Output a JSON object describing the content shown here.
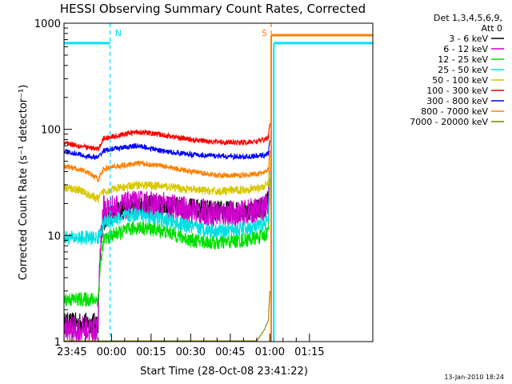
{
  "chart_data": {
    "type": "line",
    "title": "HESSI Observing Summary Count Rates, Corrected",
    "xlabel": "Start Time (28-Oct-08 23:41:22)",
    "ylabel": "Corrected Count Rate (s⁻¹ detector⁻¹)",
    "y_scale": "log",
    "ylim": [
      1,
      1000
    ],
    "x_unit": "minutes",
    "xlim": [
      -18,
      99
    ],
    "x_ticks": [
      {
        "value": -15,
        "label": "23:45"
      },
      {
        "value": 0,
        "label": "00:00"
      },
      {
        "value": 15,
        "label": "00:15"
      },
      {
        "value": 30,
        "label": "00:30"
      },
      {
        "value": 45,
        "label": "00:45"
      },
      {
        "value": 60,
        "label": "01:00"
      },
      {
        "value": 75,
        "label": "01:15"
      }
    ],
    "y_ticks": [
      {
        "value": 1,
        "label": "1"
      },
      {
        "value": 10,
        "label": "10"
      },
      {
        "value": 100,
        "label": "100"
      },
      {
        "value": 1000,
        "label": "1000"
      }
    ],
    "legend": {
      "placement": "right",
      "header": [
        "Det 1,3,4,5,6,9,",
        "Att 0"
      ]
    },
    "series": [
      {
        "name": "3 - 6 keV",
        "color": "#000000",
        "noise": 0.1,
        "x": [
          -18,
          -12,
          -10,
          -5,
          -3,
          0,
          10,
          20,
          30,
          40,
          50,
          55,
          58,
          59.5,
          60
        ],
        "y": [
          1.5,
          1.5,
          1.5,
          1.5,
          14,
          16,
          20,
          19,
          18,
          17,
          17,
          18,
          19,
          22,
          60
        ]
      },
      {
        "name": "6 - 12 keV",
        "color": "#d000d0",
        "noise": 0.13,
        "x": [
          -18,
          -12,
          -10,
          -5,
          -3,
          0,
          10,
          20,
          30,
          40,
          50,
          55,
          58,
          59.5,
          60
        ],
        "y": [
          1.3,
          1.3,
          1.3,
          1.3,
          18,
          18,
          20,
          19,
          17,
          16,
          16,
          17,
          18,
          20,
          50
        ]
      },
      {
        "name": "12 - 25 keV",
        "color": "#00e000",
        "noise": 0.07,
        "x": [
          -18,
          -12,
          -10,
          -5,
          -3,
          0,
          10,
          20,
          30,
          40,
          50,
          55,
          58,
          59.5,
          60
        ],
        "y": [
          2.5,
          2.5,
          2.5,
          2.5,
          9,
          10,
          12,
          11,
          9,
          8.5,
          9,
          9.5,
          10,
          11,
          30
        ]
      },
      {
        "name": "25 - 50 keV",
        "color": "#00e0e0",
        "noise": 0.07,
        "x": [
          -18,
          -12,
          -10,
          -5,
          -3,
          0,
          10,
          20,
          30,
          40,
          50,
          55,
          58,
          59.5,
          60
        ],
        "y": [
          9.5,
          9.5,
          9.5,
          9.5,
          13,
          14,
          16,
          14,
          12,
          11,
          11.5,
          12,
          13,
          14,
          35
        ]
      },
      {
        "name": "50 - 100 keV",
        "color": "#d8c800",
        "noise": 0.04,
        "x": [
          -18,
          -12,
          -10,
          -5,
          -3,
          0,
          10,
          20,
          30,
          40,
          50,
          55,
          58,
          59.5,
          60
        ],
        "y": [
          28,
          27,
          25,
          22,
          26,
          27,
          30,
          29,
          27,
          26,
          27,
          28,
          29,
          31,
          55
        ]
      },
      {
        "name": "100 - 300 keV",
        "color": "#ff0000",
        "noise": 0.025,
        "x": [
          -18,
          -12,
          -10,
          -5,
          -3,
          0,
          10,
          20,
          30,
          40,
          50,
          55,
          58,
          59.5,
          60
        ],
        "y": [
          75,
          70,
          68,
          65,
          82,
          85,
          95,
          88,
          80,
          76,
          75,
          77,
          80,
          85,
          110
        ]
      },
      {
        "name": "300 - 800 keV",
        "color": "#0000ff",
        "noise": 0.025,
        "x": [
          -18,
          -12,
          -10,
          -5,
          -3,
          0,
          10,
          20,
          30,
          40,
          50,
          55,
          58,
          59.5,
          60
        ],
        "y": [
          62,
          58,
          56,
          54,
          63,
          65,
          70,
          62,
          58,
          56,
          55,
          56,
          57,
          60,
          80
        ]
      },
      {
        "name": "800 - 7000 keV",
        "color": "#ff8000",
        "noise": 0.025,
        "x": [
          -18,
          -12,
          -10,
          -5,
          -3,
          0,
          10,
          20,
          30,
          40,
          50,
          55,
          58,
          59.5,
          60
        ],
        "y": [
          45,
          42,
          40,
          34,
          42,
          44,
          48,
          45,
          40,
          37,
          37,
          38,
          39,
          42,
          65
        ]
      },
      {
        "name": "7000 - 20000 keV",
        "color": "#808000",
        "noise": 0.0,
        "x": [
          -18,
          -10,
          -5,
          0,
          10,
          20,
          30,
          40,
          55,
          58,
          59.5,
          60
        ],
        "y": [
          1,
          1,
          1,
          1,
          1,
          1,
          1,
          1,
          1,
          1.3,
          1.6,
          3
        ]
      }
    ],
    "markers": [
      {
        "label": "N",
        "color": "#00d8ff",
        "x": -0.5
      },
      {
        "label": "S",
        "color": "#ff8000",
        "x": 60.5
      }
    ],
    "flags": [
      {
        "color": "#00e0ff",
        "segments": [
          [
            -18,
            -0.5,
            650
          ],
          [
            61.5,
            99,
            650
          ]
        ]
      },
      {
        "color": "#ff8000",
        "segments": [
          [
            60.5,
            99,
            770
          ]
        ]
      }
    ],
    "grid": false
  },
  "footer": {
    "timestamp": "13-Jan-2010 18:24"
  }
}
